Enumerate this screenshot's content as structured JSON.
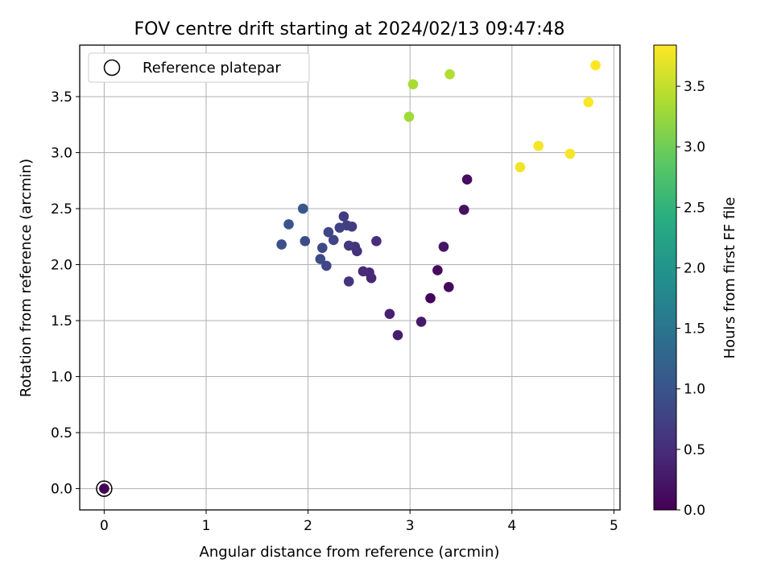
{
  "chart_data": {
    "type": "scatter",
    "title": "FOV centre drift starting at 2024/02/13 09:47:48",
    "xlabel": "Angular distance from reference (arcmin)",
    "ylabel": "Rotation from reference (arcmin)",
    "xlim": [
      -0.24,
      5.06
    ],
    "ylim": [
      -0.19,
      3.96
    ],
    "xticks": [
      0,
      1,
      2,
      3,
      4,
      5
    ],
    "xtick_labels": [
      "0",
      "1",
      "2",
      "3",
      "4",
      "5"
    ],
    "yticks": [
      0.0,
      0.5,
      1.0,
      1.5,
      2.0,
      2.5,
      3.0,
      3.5
    ],
    "ytick_labels": [
      "0.0",
      "0.5",
      "1.0",
      "1.5",
      "2.0",
      "2.5",
      "3.0",
      "3.5"
    ],
    "grid": true,
    "legend": {
      "position": "upper-left",
      "entries": [
        {
          "label": "Reference platepar",
          "marker": "open-circle"
        }
      ]
    },
    "colorbar": {
      "label": "Hours from first FF file",
      "range": [
        0.0,
        3.84
      ],
      "ticks": [
        0.0,
        0.5,
        1.0,
        1.5,
        2.0,
        2.5,
        3.0,
        3.5
      ],
      "tick_labels": [
        "0.0",
        "0.5",
        "1.0",
        "1.5",
        "2.0",
        "2.5",
        "3.0",
        "3.5"
      ],
      "colormap": "viridis"
    },
    "reference_point": {
      "x": 0,
      "y": 0
    },
    "points": [
      {
        "x": 0.0,
        "y": 0.0,
        "c": 0.0
      },
      {
        "x": 3.2,
        "y": 1.7,
        "c": 0.05
      },
      {
        "x": 3.38,
        "y": 1.8,
        "c": 0.08
      },
      {
        "x": 3.27,
        "y": 1.95,
        "c": 0.12
      },
      {
        "x": 3.56,
        "y": 2.76,
        "c": 0.15
      },
      {
        "x": 3.53,
        "y": 2.49,
        "c": 0.18
      },
      {
        "x": 3.33,
        "y": 2.16,
        "c": 0.22
      },
      {
        "x": 3.11,
        "y": 1.49,
        "c": 0.28
      },
      {
        "x": 2.88,
        "y": 1.37,
        "c": 0.32
      },
      {
        "x": 2.8,
        "y": 1.56,
        "c": 0.36
      },
      {
        "x": 2.62,
        "y": 1.88,
        "c": 0.42
      },
      {
        "x": 2.6,
        "y": 1.93,
        "c": 0.45
      },
      {
        "x": 2.54,
        "y": 1.94,
        "c": 0.48
      },
      {
        "x": 2.67,
        "y": 2.21,
        "c": 0.52
      },
      {
        "x": 2.48,
        "y": 2.12,
        "c": 0.55
      },
      {
        "x": 2.46,
        "y": 2.16,
        "c": 0.58
      },
      {
        "x": 2.4,
        "y": 1.85,
        "c": 0.6
      },
      {
        "x": 2.4,
        "y": 2.17,
        "c": 0.63
      },
      {
        "x": 2.43,
        "y": 2.34,
        "c": 0.66
      },
      {
        "x": 2.35,
        "y": 2.43,
        "c": 0.7
      },
      {
        "x": 2.38,
        "y": 2.35,
        "c": 0.72
      },
      {
        "x": 2.31,
        "y": 2.33,
        "c": 0.75
      },
      {
        "x": 2.25,
        "y": 2.22,
        "c": 0.78
      },
      {
        "x": 2.2,
        "y": 2.29,
        "c": 0.8
      },
      {
        "x": 2.18,
        "y": 1.99,
        "c": 0.82
      },
      {
        "x": 2.14,
        "y": 2.15,
        "c": 0.85
      },
      {
        "x": 2.12,
        "y": 2.05,
        "c": 0.88
      },
      {
        "x": 1.97,
        "y": 2.21,
        "c": 0.9
      },
      {
        "x": 1.74,
        "y": 2.18,
        "c": 0.95
      },
      {
        "x": 1.81,
        "y": 2.36,
        "c": 1.0
      },
      {
        "x": 1.95,
        "y": 2.5,
        "c": 1.05
      },
      {
        "x": 2.99,
        "y": 3.32,
        "c": 3.3
      },
      {
        "x": 3.03,
        "y": 3.61,
        "c": 3.35
      },
      {
        "x": 3.39,
        "y": 3.7,
        "c": 3.4
      },
      {
        "x": 4.08,
        "y": 2.87,
        "c": 3.76
      },
      {
        "x": 4.26,
        "y": 3.06,
        "c": 3.78
      },
      {
        "x": 4.57,
        "y": 2.99,
        "c": 3.8
      },
      {
        "x": 4.75,
        "y": 3.45,
        "c": 3.82
      },
      {
        "x": 4.82,
        "y": 3.78,
        "c": 3.84
      }
    ]
  }
}
